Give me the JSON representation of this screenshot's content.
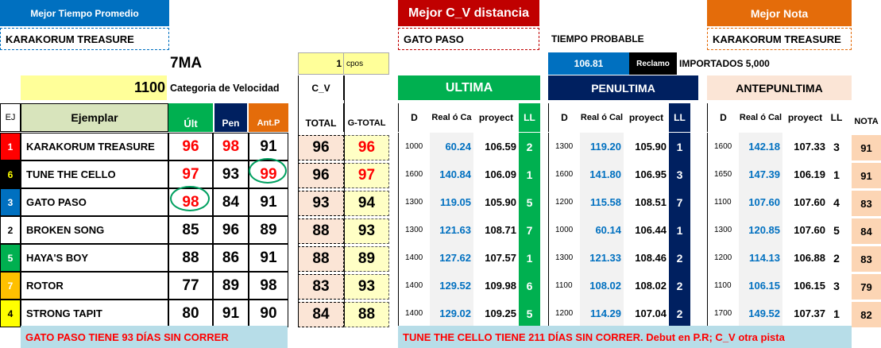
{
  "colors": {
    "blue_hdr": "#0070c0",
    "red_hdr": "#c00000",
    "orange_hdr": "#e46c0a",
    "green": "#00b050",
    "navy": "#002060",
    "peach": "#fbe5d6",
    "yellow_light": "#ffffc5",
    "yellow": "#ffff99",
    "lightblue": "#b7dde8",
    "red_text": "#ff0000",
    "blue_text": "#0070c0"
  },
  "banners": {
    "best_time_label": "Mejor Tiempo Promedio",
    "best_time_horse": "KARAKORUM TREASURE",
    "best_cv_label": "Mejor C_V distancia",
    "best_cv_horse": "GATO PASO",
    "best_note_label": "Mejor Nota",
    "best_note_horse": "KARAKORUM TREASURE",
    "probable_time_label": "TIEMPO PROBABLE",
    "probable_time": "106.81",
    "reclamo": "Reclamo",
    "importados": "IMPORTADOS 5,000"
  },
  "race": {
    "name": "7MA",
    "distance": "1100",
    "category": "Categoria de Velocidad",
    "cpos_value": "1",
    "cpos_label": "cpos"
  },
  "headers": {
    "ej": "EJ",
    "ejemplar": "Ejemplar",
    "ult": "Últ",
    "pen": "Pen",
    "antp": "Ant.P",
    "cv": "C_V",
    "total": "TOTAL",
    "gtotal": "G-TOTAL",
    "ultima": "ULTIMA",
    "penultima": "PENULTIMA",
    "antepenultima": "ANTEPUNLTIMA",
    "d": "D",
    "realca": "Real ó Ca",
    "realcal": "Real ó Cal",
    "proyect": "proyect",
    "ll": "LL",
    "nota": "NOTA"
  },
  "rows": [
    {
      "ej": "1",
      "ej_bg": "#ff0000",
      "ej_color": "#ffffff",
      "name": "KARAKORUM TREASURE",
      "ult": "96",
      "pen": "98",
      "antp": "91",
      "ult_red": true,
      "pen_red": true,
      "antp_red": false,
      "total": "96",
      "gtotal": "96",
      "gtotal_red": true,
      "u": {
        "d": "1000",
        "real": "60.24",
        "proy": "106.59",
        "ll": "2"
      },
      "p": {
        "d": "1300",
        "real": "119.20",
        "proy": "105.90",
        "ll": "1"
      },
      "a": {
        "d": "1600",
        "real": "142.18",
        "proy": "107.33",
        "ll": "3"
      },
      "nota": "91"
    },
    {
      "ej": "6",
      "ej_bg": "#000000",
      "ej_color": "#ffff00",
      "name": "TUNE THE CELLO",
      "ult": "97",
      "pen": "93",
      "antp": "99",
      "ult_red": true,
      "pen_red": false,
      "antp_red": true,
      "total": "96",
      "gtotal": "97",
      "gtotal_red": true,
      "u": {
        "d": "1600",
        "real": "140.84",
        "proy": "106.09",
        "ll": "1"
      },
      "p": {
        "d": "1600",
        "real": "141.80",
        "proy": "106.95",
        "ll": "3"
      },
      "a": {
        "d": "1650",
        "real": "147.39",
        "proy": "106.19",
        "ll": "1"
      },
      "nota": "91"
    },
    {
      "ej": "3",
      "ej_bg": "#0070c0",
      "ej_color": "#ffffff",
      "name": "GATO PASO",
      "ult": "98",
      "pen": "84",
      "antp": "91",
      "ult_red": true,
      "pen_red": false,
      "antp_red": false,
      "total": "93",
      "gtotal": "94",
      "gtotal_red": false,
      "u": {
        "d": "1300",
        "real": "119.05",
        "proy": "105.90",
        "ll": "5"
      },
      "p": {
        "d": "1200",
        "real": "115.58",
        "proy": "108.51",
        "ll": "7"
      },
      "a": {
        "d": "1100",
        "real": "107.60",
        "proy": "107.60",
        "ll": "4"
      },
      "nota": "83"
    },
    {
      "ej": "2",
      "ej_bg": "#ffffff",
      "ej_color": "#000000",
      "name": "BROKEN SONG",
      "ult": "85",
      "pen": "96",
      "antp": "89",
      "ult_red": false,
      "pen_red": false,
      "antp_red": false,
      "total": "88",
      "gtotal": "93",
      "gtotal_red": false,
      "u": {
        "d": "1300",
        "real": "121.63",
        "proy": "108.71",
        "ll": "7"
      },
      "p": {
        "d": "1000",
        "real": "60.14",
        "proy": "106.44",
        "ll": "1"
      },
      "a": {
        "d": "1300",
        "real": "120.85",
        "proy": "107.60",
        "ll": "5"
      },
      "nota": "84"
    },
    {
      "ej": "5",
      "ej_bg": "#00b050",
      "ej_color": "#ffffff",
      "name": "HAYA'S BOY",
      "ult": "88",
      "pen": "86",
      "antp": "91",
      "ult_red": false,
      "pen_red": false,
      "antp_red": false,
      "total": "88",
      "gtotal": "89",
      "gtotal_red": false,
      "u": {
        "d": "1400",
        "real": "127.62",
        "proy": "107.57",
        "ll": "1"
      },
      "p": {
        "d": "1300",
        "real": "121.33",
        "proy": "108.46",
        "ll": "2"
      },
      "a": {
        "d": "1200",
        "real": "114.13",
        "proy": "106.88",
        "ll": "2"
      },
      "nota": "83"
    },
    {
      "ej": "7",
      "ej_bg": "#ffc000",
      "ej_color": "#ffffff",
      "name": "ROTOR",
      "ult": "77",
      "pen": "89",
      "antp": "98",
      "ult_red": false,
      "pen_red": false,
      "antp_red": false,
      "total": "83",
      "gtotal": "93",
      "gtotal_red": false,
      "u": {
        "d": "1400",
        "real": "129.52",
        "proy": "109.98",
        "ll": "6"
      },
      "p": {
        "d": "1100",
        "real": "108.02",
        "proy": "108.02",
        "ll": "2"
      },
      "a": {
        "d": "1100",
        "real": "106.15",
        "proy": "106.15",
        "ll": "3"
      },
      "nota": "79"
    },
    {
      "ej": "4",
      "ej_bg": "#ffff00",
      "ej_color": "#000000",
      "name": "STRONG TAPIT",
      "ult": "80",
      "pen": "91",
      "antp": "90",
      "ult_red": false,
      "pen_red": false,
      "antp_red": false,
      "total": "84",
      "gtotal": "88",
      "gtotal_red": false,
      "u": {
        "d": "1400",
        "real": "129.02",
        "proy": "109.25",
        "ll": "5"
      },
      "p": {
        "d": "1200",
        "real": "114.29",
        "proy": "107.04",
        "ll": "2"
      },
      "a": {
        "d": "1700",
        "real": "149.52",
        "proy": "107.37",
        "ll": "1"
      },
      "nota": "82"
    }
  ],
  "footer": {
    "left": "GATO PASO TIENE 93 DÍAS SIN CORRER",
    "right": "TUNE THE CELLO TIENE 211 DÍAS SIN CORRER. Debut en P.R; C_V otra pista"
  }
}
